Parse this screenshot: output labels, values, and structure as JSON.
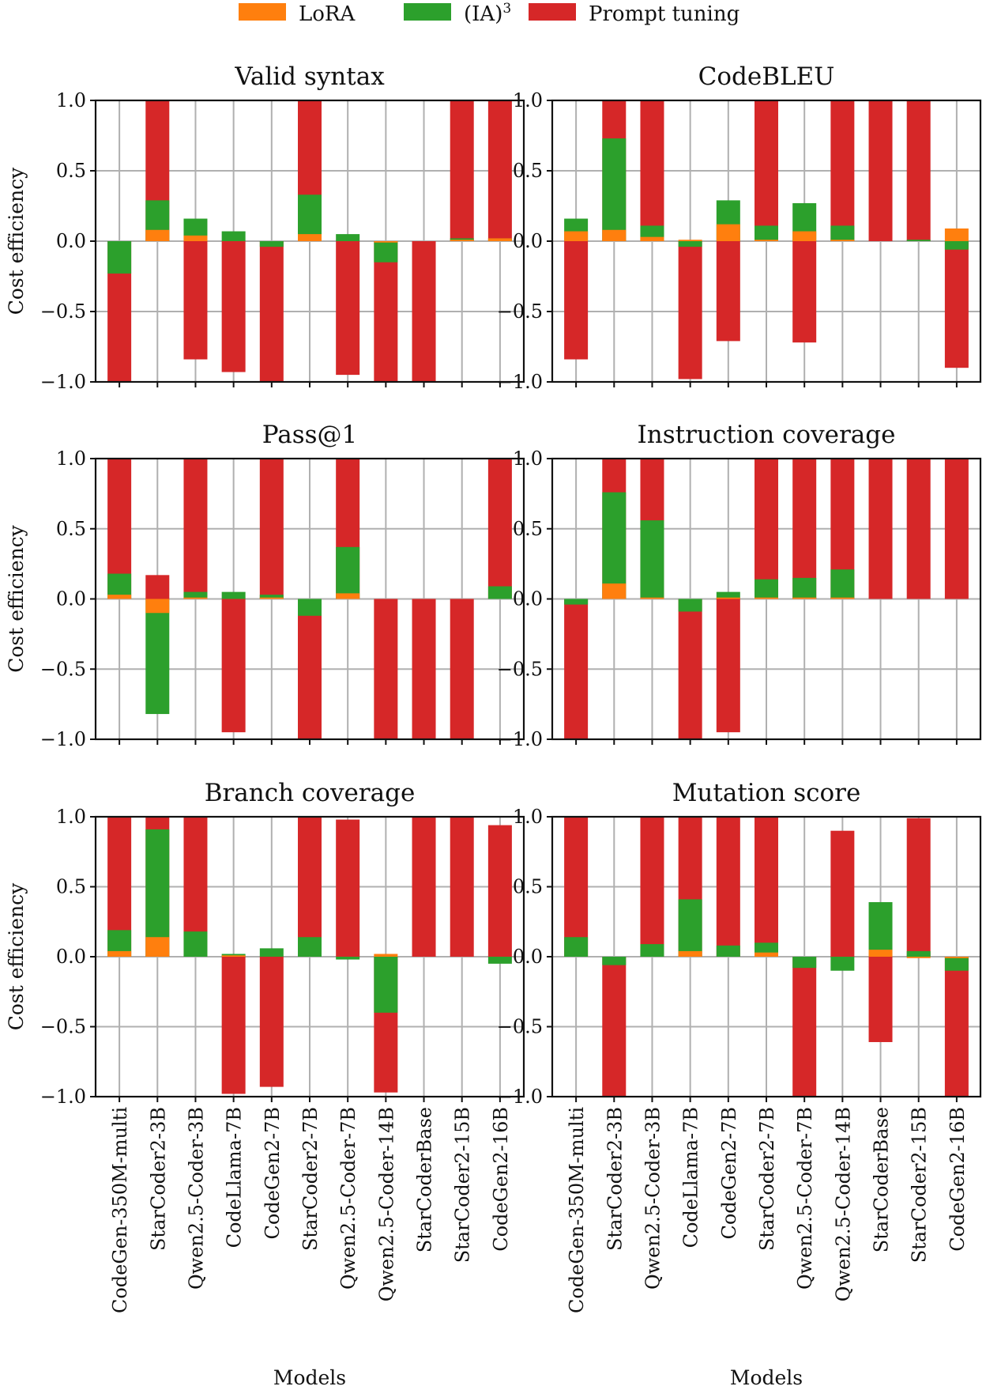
{
  "legend": [
    {
      "name": "LoRA",
      "color": "#ff7f0e"
    },
    {
      "name": "(IA)",
      "sup": "3",
      "color": "#2ca02c"
    },
    {
      "name": "Prompt tuning",
      "color": "#d62728"
    }
  ],
  "chart_data": [
    {
      "type": "bar",
      "title": "Valid syntax",
      "ylabel": "Cost efficiency",
      "xlabel": "",
      "ylim": [
        -1,
        1
      ],
      "yticks": [
        "1.0",
        "0.5",
        "0.0",
        "−0.5",
        "−1.0"
      ],
      "categories": [
        "CodeGen-350M-multi",
        "StarCoder2-3B",
        "Qwen2.5-Coder-3B",
        "CodeLlama-7B",
        "CodeGen2-7B",
        "StarCoder2-7B",
        "Qwen2.5-Coder-7B",
        "Qwen2.5-Coder-14B",
        "StarCoderBase",
        "StarCoder2-15B",
        "CodeGen2-16B"
      ],
      "series": [
        {
          "name": "LoRA",
          "values": [
            0,
            0.08,
            0.04,
            0,
            0,
            0.05,
            0,
            -0.01,
            0,
            0.01,
            0.02
          ]
        },
        {
          "name": "(IA)3",
          "values": [
            -0.23,
            0.29,
            0.16,
            0.07,
            -0.04,
            0.33,
            0.05,
            -0.15,
            0,
            0.02,
            0.02
          ]
        },
        {
          "name": "Prompt tuning",
          "values": [
            -1.0,
            1.0,
            -0.84,
            -0.93,
            -1.0,
            1.0,
            -0.95,
            -1.0,
            -1.0,
            1.0,
            1.0
          ]
        }
      ]
    },
    {
      "type": "bar",
      "title": "CodeBLEU",
      "ylabel": "",
      "xlabel": "",
      "ylim": [
        -1,
        1
      ],
      "yticks": [
        "1.0",
        "0.5",
        "0.0",
        "−0.5",
        "−1.0"
      ],
      "categories": [
        "CodeGen-350M-multi",
        "StarCoder2-3B",
        "Qwen2.5-Coder-3B",
        "CodeLlama-7B",
        "CodeGen2-7B",
        "StarCoder2-7B",
        "Qwen2.5-Coder-7B",
        "Qwen2.5-Coder-14B",
        "StarCoderBase",
        "StarCoder2-15B",
        "CodeGen2-16B"
      ],
      "series": [
        {
          "name": "LoRA",
          "values": [
            0.07,
            0.08,
            0.03,
            0.01,
            0.12,
            0.01,
            0.07,
            0.01,
            0,
            0,
            0.09
          ]
        },
        {
          "name": "(IA)3",
          "values": [
            0.16,
            0.73,
            0.11,
            -0.04,
            0.29,
            0.11,
            0.27,
            0.11,
            0,
            0.01,
            -0.06
          ]
        },
        {
          "name": "Prompt tuning",
          "values": [
            -0.84,
            1.0,
            1.0,
            -0.98,
            -0.71,
            1.0,
            -0.72,
            1.0,
            1.0,
            1.0,
            -0.9
          ]
        }
      ]
    },
    {
      "type": "bar",
      "title": "Pass@1",
      "ylabel": "Cost efficiency",
      "xlabel": "",
      "ylim": [
        -1,
        1
      ],
      "yticks": [
        "1.0",
        "0.5",
        "0.0",
        "−0.5",
        "−1.0"
      ],
      "categories": [
        "CodeGen-350M-multi",
        "StarCoder2-3B",
        "Qwen2.5-Coder-3B",
        "CodeLlama-7B",
        "CodeGen2-7B",
        "StarCoder2-7B",
        "Qwen2.5-Coder-7B",
        "Qwen2.5-Coder-14B",
        "StarCoderBase",
        "StarCoder2-15B",
        "CodeGen2-16B"
      ],
      "series": [
        {
          "name": "LoRA",
          "values": [
            0.03,
            -0.1,
            0.01,
            0,
            0.01,
            0,
            0.04,
            0,
            0,
            0,
            0
          ]
        },
        {
          "name": "(IA)3",
          "values": [
            0.18,
            -0.82,
            0.05,
            0.05,
            0.03,
            -0.12,
            0.37,
            0,
            0,
            0,
            0.09
          ]
        },
        {
          "name": "Prompt tuning",
          "values": [
            1.0,
            0.17,
            1.0,
            -0.95,
            1.0,
            -1.0,
            1.0,
            -1.0,
            -1.0,
            -1.0,
            1.0
          ]
        }
      ]
    },
    {
      "type": "bar",
      "title": "Instruction coverage",
      "ylabel": "",
      "xlabel": "",
      "ylim": [
        -1,
        1
      ],
      "yticks": [
        "1.0",
        "0.5",
        "0.0",
        "−0.5",
        "−1.0"
      ],
      "categories": [
        "CodeGen-350M-multi",
        "StarCoder2-3B",
        "Qwen2.5-Coder-3B",
        "CodeLlama-7B",
        "CodeGen2-7B",
        "StarCoder2-7B",
        "Qwen2.5-Coder-7B",
        "Qwen2.5-Coder-14B",
        "StarCoderBase",
        "StarCoder2-15B",
        "CodeGen2-16B"
      ],
      "series": [
        {
          "name": "LoRA",
          "values": [
            0,
            0.11,
            0.01,
            0,
            0.01,
            0.01,
            0.01,
            0.01,
            0,
            0,
            0
          ]
        },
        {
          "name": "(IA)3",
          "values": [
            -0.04,
            0.76,
            0.56,
            -0.09,
            0.05,
            0.14,
            0.15,
            0.21,
            0,
            0,
            0
          ]
        },
        {
          "name": "Prompt tuning",
          "values": [
            -1.0,
            1.0,
            1.0,
            -1.0,
            -0.95,
            1.0,
            1.0,
            1.0,
            1.0,
            1.0,
            1.0
          ]
        }
      ]
    },
    {
      "type": "bar",
      "title": "Branch coverage",
      "ylabel": "Cost efficiency",
      "xlabel": "Models",
      "ylim": [
        -1,
        1
      ],
      "yticks": [
        "1.0",
        "0.5",
        "0.0",
        "−0.5",
        "−1.0"
      ],
      "categories": [
        "CodeGen-350M-multi",
        "StarCoder2-3B",
        "Qwen2.5-Coder-3B",
        "CodeLlama-7B",
        "CodeGen2-7B",
        "StarCoder2-7B",
        "Qwen2.5-Coder-7B",
        "Qwen2.5-Coder-14B",
        "StarCoderBase",
        "StarCoder2-15B",
        "CodeGen2-16B"
      ],
      "series": [
        {
          "name": "LoRA",
          "values": [
            0.04,
            0.14,
            0,
            0.01,
            0,
            0,
            0,
            0.02,
            0,
            0,
            0
          ]
        },
        {
          "name": "(IA)3",
          "values": [
            0.19,
            0.91,
            0.18,
            0.02,
            0.06,
            0.14,
            -0.02,
            -0.4,
            0,
            0,
            -0.05
          ]
        },
        {
          "name": "Prompt tuning",
          "values": [
            1.0,
            1.0,
            1.0,
            -0.98,
            -0.93,
            1.0,
            0.98,
            -0.97,
            1.0,
            1.0,
            0.94
          ]
        }
      ]
    },
    {
      "type": "bar",
      "title": "Mutation score",
      "ylabel": "",
      "xlabel": "Models",
      "ylim": [
        -1,
        1
      ],
      "yticks": [
        "1.0",
        "0.5",
        "0.0",
        "−0.5",
        "−1.0"
      ],
      "categories": [
        "CodeGen-350M-multi",
        "StarCoder2-3B",
        "Qwen2.5-Coder-3B",
        "CodeLlama-7B",
        "CodeGen2-7B",
        "StarCoder2-7B",
        "Qwen2.5-Coder-7B",
        "Qwen2.5-Coder-14B",
        "StarCoderBase",
        "StarCoder2-15B",
        "CodeGen2-16B"
      ],
      "series": [
        {
          "name": "LoRA",
          "values": [
            0,
            0,
            0,
            0.04,
            0,
            0.03,
            0,
            0,
            0.05,
            -0.01,
            -0.01
          ]
        },
        {
          "name": "(IA)3",
          "values": [
            0.14,
            -0.06,
            0.09,
            0.41,
            0.08,
            0.1,
            -0.08,
            -0.1,
            0.39,
            0.04,
            -0.1
          ]
        },
        {
          "name": "Prompt tuning",
          "values": [
            1.0,
            -1.0,
            1.0,
            1.0,
            1.0,
            1.0,
            -1.0,
            0.9,
            -0.61,
            0.99,
            -1.0
          ]
        }
      ]
    }
  ]
}
